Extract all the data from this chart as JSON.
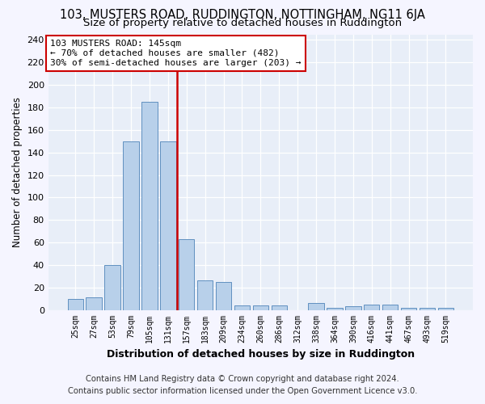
{
  "title1": "103, MUSTERS ROAD, RUDDINGTON, NOTTINGHAM, NG11 6JA",
  "title2": "Size of property relative to detached houses in Ruddington",
  "xlabel": "Distribution of detached houses by size in Ruddington",
  "ylabel": "Number of detached properties",
  "categories": [
    "25sqm",
    "27sqm",
    "53sqm",
    "79sqm",
    "105sqm",
    "131sqm",
    "157sqm",
    "183sqm",
    "209sqm",
    "234sqm",
    "260sqm",
    "286sqm",
    "312sqm",
    "338sqm",
    "364sqm",
    "390sqm",
    "416sqm",
    "441sqm",
    "467sqm",
    "493sqm",
    "519sqm"
  ],
  "values": [
    10,
    11,
    40,
    150,
    185,
    150,
    63,
    26,
    25,
    4,
    4,
    4,
    0,
    6,
    2,
    3,
    5,
    5,
    2,
    2,
    2
  ],
  "bar_color": "#b8d0ea",
  "bar_edge_color": "#6090c0",
  "vline_pos": 5.5,
  "vline_color": "#cc0000",
  "annotation_text": "103 MUSTERS ROAD: 145sqm\n← 70% of detached houses are smaller (482)\n30% of semi-detached houses are larger (203) →",
  "annotation_box_facecolor": "#ffffff",
  "annotation_box_edgecolor": "#cc0000",
  "ylim_max": 245,
  "yticks": [
    0,
    20,
    40,
    60,
    80,
    100,
    120,
    140,
    160,
    180,
    200,
    220,
    240
  ],
  "footnote1": "Contains HM Land Registry data © Crown copyright and database right 2024.",
  "footnote2": "Contains public sector information licensed under the Open Government Licence v3.0.",
  "bg_color": "#e8eef8",
  "grid_color": "#ffffff",
  "fig_facecolor": "#f5f5ff",
  "title1_fontsize": 10.5,
  "title2_fontsize": 9.5,
  "xlabel_fontsize": 9,
  "ylabel_fontsize": 8.5,
  "tick_fontsize": 8,
  "xtick_fontsize": 7,
  "footnote_fontsize": 7.2,
  "annotation_fontsize": 8
}
